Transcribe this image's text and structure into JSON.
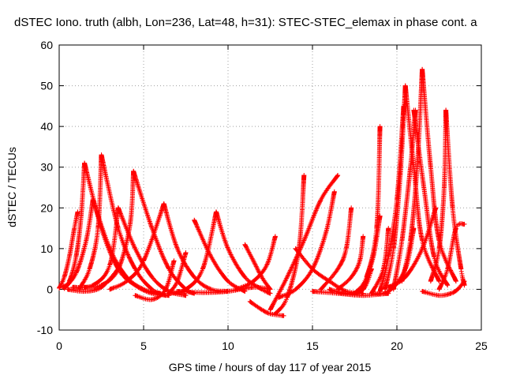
{
  "chart_data": {
    "type": "scatter",
    "title": "dSTEC Iono. truth (albh, Lon=236, Lat=48, h=31): STEC-STEC_elemax in phase cont. a",
    "xlabel": "GPS time / hours of day 117 of year 2015",
    "ylabel": "dSTEC  / TECUs",
    "xlim": [
      0,
      25
    ],
    "ylim": [
      -10,
      60
    ],
    "xticks": [
      0,
      5,
      10,
      15,
      20,
      25
    ],
    "yticks": [
      -10,
      0,
      10,
      20,
      30,
      40,
      50,
      60
    ],
    "xtick_labels": [
      "0",
      "5",
      "10",
      "15",
      "20",
      "25"
    ],
    "ytick_labels": [
      "-10",
      "0",
      "10",
      "20",
      "30",
      "40",
      "50",
      "60"
    ],
    "grid": true,
    "marker": "plus",
    "color": "#ff0000",
    "arcs": [
      {
        "x": [
          0.0,
          0.3,
          0.6,
          0.9,
          1.1
        ],
        "y": [
          0.3,
          3,
          8,
          15,
          19
        ]
      },
      {
        "x": [
          0.2,
          0.6,
          1.0,
          1.3,
          1.5
        ],
        "y": [
          0.5,
          2,
          8,
          18,
          31
        ]
      },
      {
        "x": [
          1.5,
          2.5,
          3.5,
          4.5,
          5.5,
          6.5
        ],
        "y": [
          31,
          15,
          5,
          1,
          -1,
          -1.5
        ]
      },
      {
        "x": [
          0.3,
          1.0,
          1.6,
          2.0
        ],
        "y": [
          0.2,
          4,
          12,
          22
        ]
      },
      {
        "x": [
          2.0,
          3.0,
          4.0,
          5.0,
          6.0
        ],
        "y": [
          22,
          10,
          3,
          0,
          -1
        ]
      },
      {
        "x": [
          1.2,
          1.8,
          2.3,
          2.5
        ],
        "y": [
          0.2,
          5,
          15,
          33
        ]
      },
      {
        "x": [
          2.5,
          3.5,
          4.5,
          5.5,
          6.3
        ],
        "y": [
          33,
          15,
          5,
          0,
          -1.5
        ]
      },
      {
        "x": [
          0.8,
          2.0,
          3.0,
          3.5
        ],
        "y": [
          0.5,
          1,
          6,
          20
        ]
      },
      {
        "x": [
          3.5,
          4.5,
          5.5,
          6.5,
          7.5
        ],
        "y": [
          20,
          10,
          3,
          -0.5,
          -1.5
        ]
      },
      {
        "x": [
          1.5,
          2.5,
          3.5,
          4.2,
          4.4
        ],
        "y": [
          0.5,
          1,
          5,
          16,
          29
        ]
      },
      {
        "x": [
          4.4,
          5.5,
          6.5,
          7.5,
          8.0
        ],
        "y": [
          29,
          15,
          5,
          0,
          -1
        ]
      },
      {
        "x": [
          0.5,
          1.5,
          2.5,
          3.5
        ],
        "y": [
          0,
          -0.5,
          0.5,
          5
        ]
      },
      {
        "x": [
          3.0,
          4.0,
          5.0,
          6.2
        ],
        "y": [
          0,
          2,
          7,
          21
        ]
      },
      {
        "x": [
          6.2,
          7.0,
          8.0,
          9.0,
          10.0
        ],
        "y": [
          21,
          10,
          3,
          0,
          -0.5
        ]
      },
      {
        "x": [
          4.5,
          5.5,
          6.3,
          6.8
        ],
        "y": [
          -1.5,
          -2.5,
          0,
          7
        ]
      },
      {
        "x": [
          6.5,
          7.0,
          7.5
        ],
        "y": [
          -1,
          2,
          9
        ]
      },
      {
        "x": [
          8.0,
          9.0,
          10.0,
          11.0
        ],
        "y": [
          17,
          8,
          2,
          -0.5
        ]
      },
      {
        "x": [
          6.5,
          7.5,
          8.5,
          9.3
        ],
        "y": [
          -1,
          0,
          5,
          19
        ]
      },
      {
        "x": [
          9.3,
          10.0,
          11.0,
          12.0,
          12.5
        ],
        "y": [
          19,
          10,
          3,
          0,
          -1
        ]
      },
      {
        "x": [
          7.0,
          8.5,
          10.0,
          11.5,
          12.5
        ],
        "y": [
          -0.5,
          -0.8,
          -0.5,
          0.5,
          0
        ]
      },
      {
        "x": [
          11.0,
          11.5,
          12.0,
          12.5
        ],
        "y": [
          11,
          7,
          3,
          0
        ]
      },
      {
        "x": [
          10.5,
          11.5,
          12.3,
          12.8
        ],
        "y": [
          0,
          2,
          6,
          13
        ]
      },
      {
        "x": [
          11.3,
          12.0,
          12.5,
          13.3
        ],
        "y": [
          -3,
          -5,
          -6,
          -6.5
        ]
      },
      {
        "x": [
          12.8,
          13.5,
          14.2,
          14.5
        ],
        "y": [
          -6,
          -2,
          10,
          28
        ]
      },
      {
        "x": [
          12.5,
          13.5,
          14.5,
          15.5,
          16.5
        ],
        "y": [
          -5,
          3,
          12,
          22,
          28
        ]
      },
      {
        "x": [
          13.0,
          14.0,
          15.0,
          15.8,
          16.3
        ],
        "y": [
          -2,
          0,
          5,
          14,
          24
        ]
      },
      {
        "x": [
          14.0,
          15.0,
          16.0,
          17.0,
          18.0
        ],
        "y": [
          10,
          5,
          2,
          -0.5,
          -1
        ]
      },
      {
        "x": [
          15.5,
          16.5,
          17.0,
          17.3
        ],
        "y": [
          0,
          5,
          10,
          20
        ]
      },
      {
        "x": [
          16.5,
          17.3,
          17.8,
          18.0
        ],
        "y": [
          0,
          3,
          7,
          13
        ]
      },
      {
        "x": [
          17.5,
          18.2,
          18.8,
          19.0
        ],
        "y": [
          -1,
          3,
          15,
          40
        ]
      },
      {
        "x": [
          18.0,
          18.6,
          19.0
        ],
        "y": [
          0,
          8,
          18
        ]
      },
      {
        "x": [
          18.5,
          19.2,
          19.5
        ],
        "y": [
          -1,
          5,
          15
        ]
      },
      {
        "x": [
          19.0,
          19.5,
          20.0,
          20.4
        ],
        "y": [
          -0.5,
          8,
          22,
          45
        ]
      },
      {
        "x": [
          19.3,
          19.8,
          20.2,
          20.5
        ],
        "y": [
          0,
          10,
          28,
          50
        ]
      },
      {
        "x": [
          20.5,
          21.0,
          21.5,
          22.5
        ],
        "y": [
          50,
          30,
          12,
          2
        ]
      },
      {
        "x": [
          19.8,
          20.3,
          20.8,
          21.1
        ],
        "y": [
          0,
          12,
          30,
          44
        ]
      },
      {
        "x": [
          21.0,
          21.6,
          22.2,
          23.0
        ],
        "y": [
          44,
          25,
          8,
          1
        ]
      },
      {
        "x": [
          20.3,
          20.8,
          21.2,
          21.5
        ],
        "y": [
          2,
          12,
          30,
          54
        ]
      },
      {
        "x": [
          21.5,
          22.0,
          22.5,
          23.5
        ],
        "y": [
          54,
          30,
          12,
          2
        ]
      },
      {
        "x": [
          22.0,
          22.5,
          22.8,
          22.9
        ],
        "y": [
          2,
          10,
          25,
          44
        ]
      },
      {
        "x": [
          22.9,
          23.3,
          23.8,
          24.0
        ],
        "y": [
          44,
          20,
          5,
          1
        ]
      },
      {
        "x": [
          22.5,
          23.0,
          23.5,
          24.0
        ],
        "y": [
          0,
          5,
          15,
          16
        ]
      },
      {
        "x": [
          21.5,
          22.5,
          23.2,
          23.6,
          24.0
        ],
        "y": [
          -0.5,
          -1.5,
          -1,
          0,
          2
        ]
      },
      {
        "x": [
          19.5,
          20.5,
          21.5,
          22.3
        ],
        "y": [
          0.5,
          3,
          10,
          20
        ]
      },
      {
        "x": [
          18.5,
          19.5,
          20.5,
          21.0
        ],
        "y": [
          -1,
          -0.5,
          5,
          15
        ]
      },
      {
        "x": [
          16.0,
          17.0,
          18.0,
          18.5
        ],
        "y": [
          0,
          -1,
          0,
          5
        ]
      },
      {
        "x": [
          15.0,
          16.5,
          18.0,
          19.5
        ],
        "y": [
          -0.5,
          -1,
          -1.5,
          -1
        ]
      }
    ]
  }
}
